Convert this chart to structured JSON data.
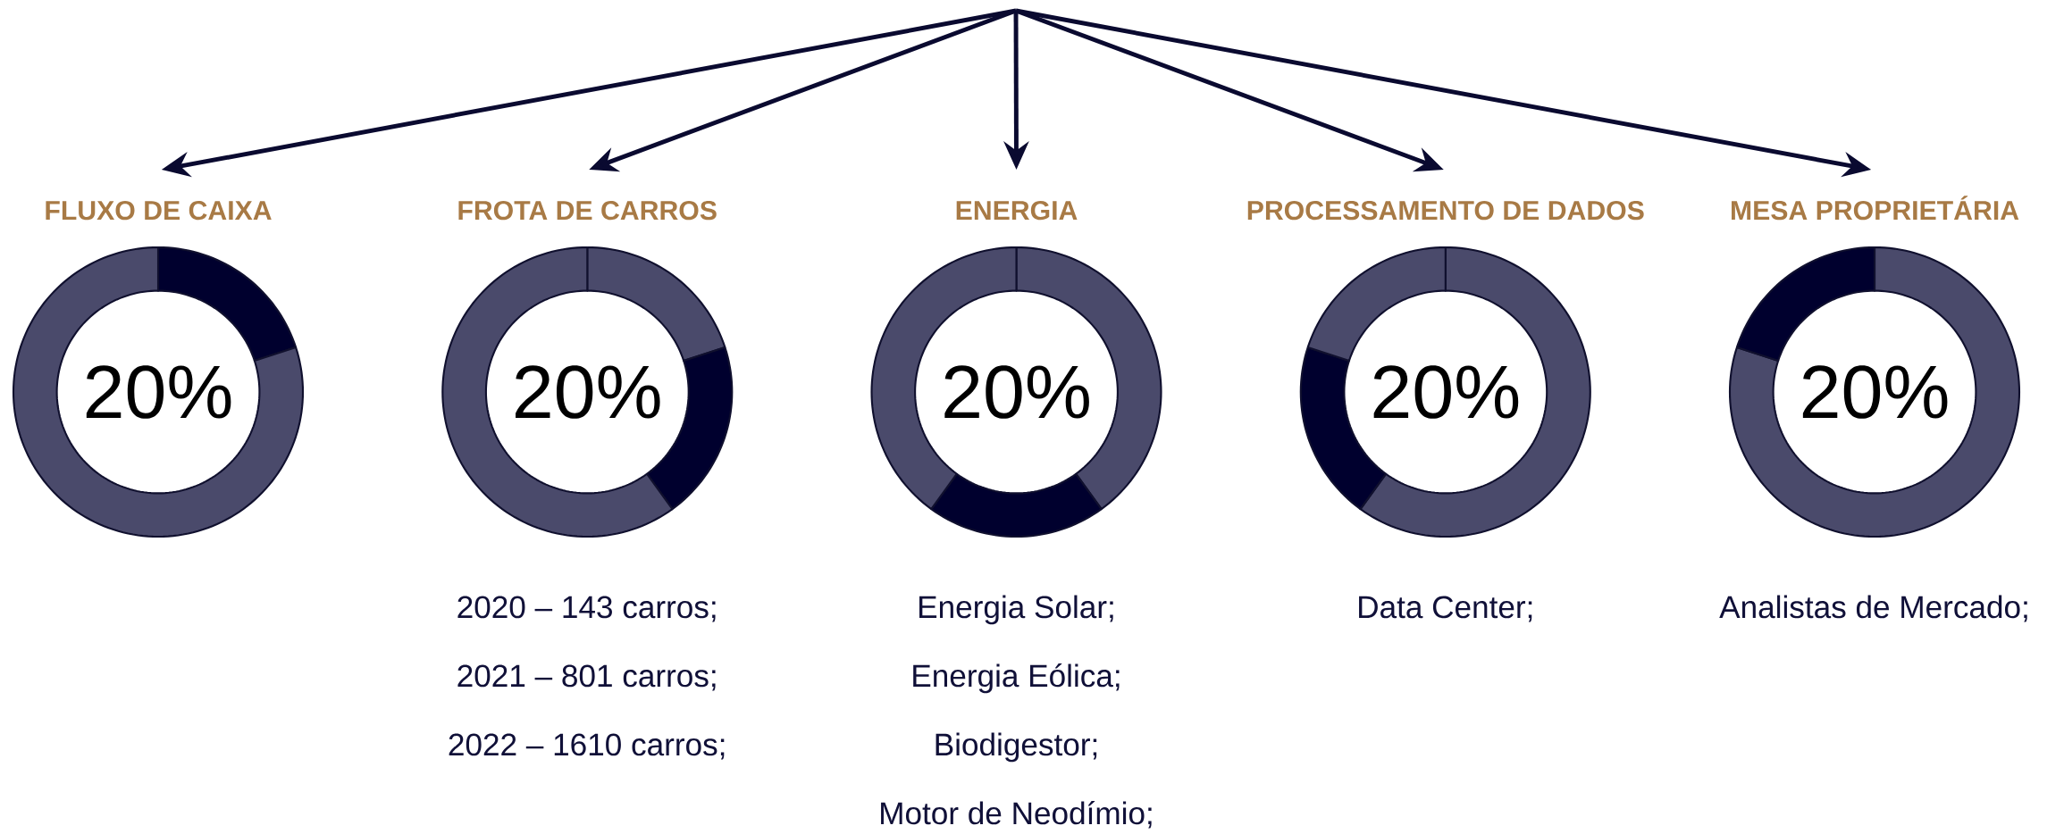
{
  "chart_data": [
    {
      "type": "donut",
      "title": "FLUXO DE CAIXA",
      "categories": [
        null,
        null
      ],
      "values": [
        20,
        80
      ],
      "colors": [
        "#00002e",
        "#4a4a6b"
      ],
      "annotations": [
        "20%"
      ]
    },
    {
      "type": "donut",
      "title": "FROTA DE CARROS",
      "categories": [
        null,
        null,
        null
      ],
      "values": [
        20,
        20,
        60
      ],
      "colors": [
        "#4a4a6b",
        "#00002e",
        "#4a4a6b"
      ],
      "annotations": [
        "20%",
        "2020 – 143 carros;",
        "2021 – 801 carros;",
        "2022 – 1610 carros;"
      ]
    },
    {
      "type": "donut",
      "title": "ENERGIA",
      "categories": [
        null,
        null,
        null
      ],
      "values": [
        40,
        20,
        40
      ],
      "colors": [
        "#4a4a6b",
        "#00002e",
        "#4a4a6b"
      ],
      "annotations": [
        "20%",
        "Energia Solar;",
        "Energia Eólica;",
        "Biodigestor;",
        "Motor de Neodímio;"
      ]
    },
    {
      "type": "donut",
      "title": "PROCESSAMENTO DE DADOS",
      "categories": [
        null,
        null,
        null
      ],
      "values": [
        60,
        20,
        20
      ],
      "colors": [
        "#4a4a6b",
        "#00002e",
        "#4a4a6b"
      ],
      "annotations": [
        "20%",
        "Data Center;"
      ]
    },
    {
      "type": "donut",
      "title": "MESA PROPRIETÁRIA",
      "categories": [
        null,
        null
      ],
      "values": [
        80,
        20
      ],
      "colors": [
        "#4a4a6b",
        "#00002e"
      ],
      "annotations": [
        "20%",
        "Analistas de Mercado;"
      ]
    }
  ]
}
